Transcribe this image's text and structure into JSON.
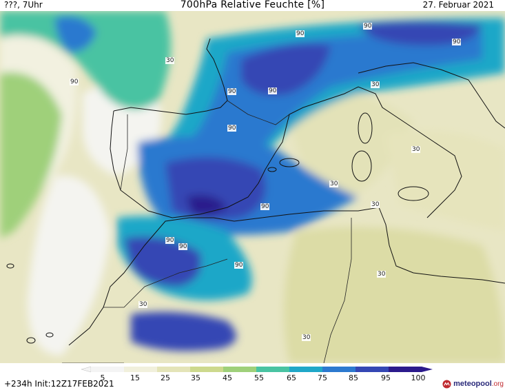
{
  "header": {
    "left": "???, 7Uhr",
    "title": "700hPa Relative Feuchte [%]",
    "right": "27. Februar 2021"
  },
  "contour_labels": [
    "90",
    "90",
    "90",
    "90",
    "90",
    "90",
    "90",
    "90",
    "90",
    "90",
    "90",
    "30",
    "30",
    "30",
    "30",
    "30",
    "30",
    "30",
    "30"
  ],
  "legend": {
    "ticks": [
      "5",
      "15",
      "25",
      "35",
      "45",
      "55",
      "65",
      "75",
      "85",
      "95",
      "100"
    ],
    "colors": [
      "#f4f4f4",
      "#f1f0dc",
      "#e4e4b8",
      "#cdd98d",
      "#9fd07a",
      "#49c3a2",
      "#1fa7c8",
      "#2c79cf",
      "#3447b4",
      "#2b1a8c",
      "#1a0a5a"
    ]
  },
  "footer": {
    "init": "+234h  Init:12Z17FEB2021",
    "brand": "meteopool",
    "brand_tld": ".org"
  }
}
